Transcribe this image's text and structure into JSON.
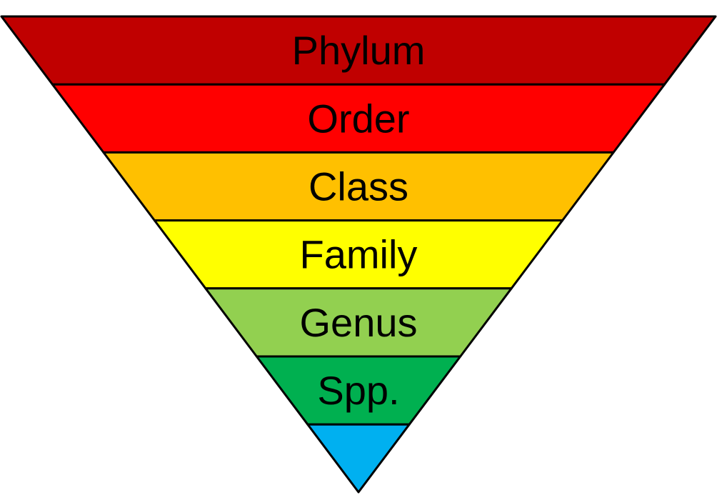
{
  "diagram": {
    "type": "inverted-pyramid",
    "tiers": [
      {
        "label": "Phylum",
        "color": "#C00000"
      },
      {
        "label": "Order",
        "color": "#FF0000"
      },
      {
        "label": "Class",
        "color": "#FFC000"
      },
      {
        "label": "Family",
        "color": "#FFFF00"
      },
      {
        "label": "Genus",
        "color": "#92D050"
      },
      {
        "label": "Spp.",
        "color": "#00B050"
      },
      {
        "label": "",
        "color": "#00B0F0"
      }
    ],
    "outline_color": "#000000"
  }
}
